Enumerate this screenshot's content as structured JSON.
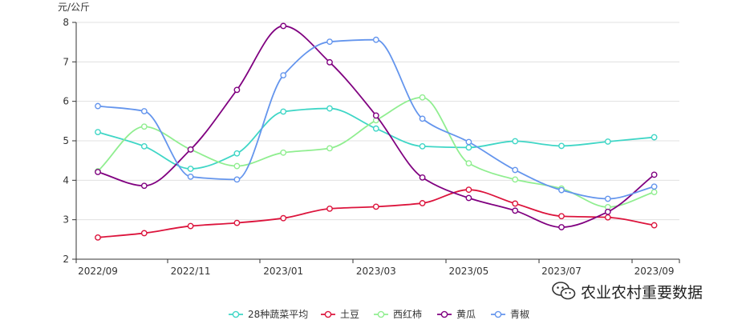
{
  "watermark": {
    "text": "农业农村重要数据",
    "icon": "wechat-icon"
  },
  "chart_data": {
    "type": "line",
    "title": "",
    "xlabel": "",
    "ylabel": "元/公斤",
    "ylim": [
      2,
      8
    ],
    "yticks": [
      2,
      3,
      4,
      5,
      6,
      7,
      8
    ],
    "x_ticks": [
      "2022/09",
      "2022/11",
      "2023/01",
      "2023/03",
      "2023/05",
      "2023/07",
      "2023/09"
    ],
    "categories": [
      "2022/09",
      "2022/10",
      "2022/11",
      "2022/12",
      "2023/01",
      "2023/02",
      "2023/03",
      "2023/04",
      "2023/05",
      "2023/06",
      "2023/07",
      "2023/08",
      "2023/09"
    ],
    "grid": "horizontal",
    "legend_position": "bottom",
    "series": [
      {
        "name": "28种蔬菜平均",
        "color": "#3fd6c6",
        "values": [
          5.22,
          4.86,
          4.29,
          4.68,
          5.74,
          5.82,
          5.31,
          4.86,
          4.83,
          4.99,
          4.87,
          4.98,
          5.09
        ]
      },
      {
        "name": "土豆",
        "color": "#dc143c",
        "values": [
          2.55,
          2.66,
          2.84,
          2.92,
          3.04,
          3.28,
          3.33,
          3.42,
          3.76,
          3.41,
          3.09,
          3.06,
          2.86
        ]
      },
      {
        "name": "西红柿",
        "color": "#90ee90",
        "values": [
          4.23,
          5.36,
          4.78,
          4.36,
          4.7,
          4.81,
          5.52,
          6.1,
          4.43,
          4.02,
          3.79,
          3.32,
          3.7
        ]
      },
      {
        "name": "黄瓜",
        "color": "#800080",
        "values": [
          4.21,
          3.86,
          4.78,
          6.29,
          7.91,
          6.99,
          5.64,
          4.07,
          3.55,
          3.23,
          2.81,
          3.2,
          4.14
        ]
      },
      {
        "name": "青椒",
        "color": "#6495ed",
        "values": [
          5.88,
          5.75,
          4.09,
          4.02,
          6.66,
          7.51,
          7.56,
          5.56,
          4.97,
          4.26,
          3.75,
          3.53,
          3.84
        ]
      }
    ]
  }
}
